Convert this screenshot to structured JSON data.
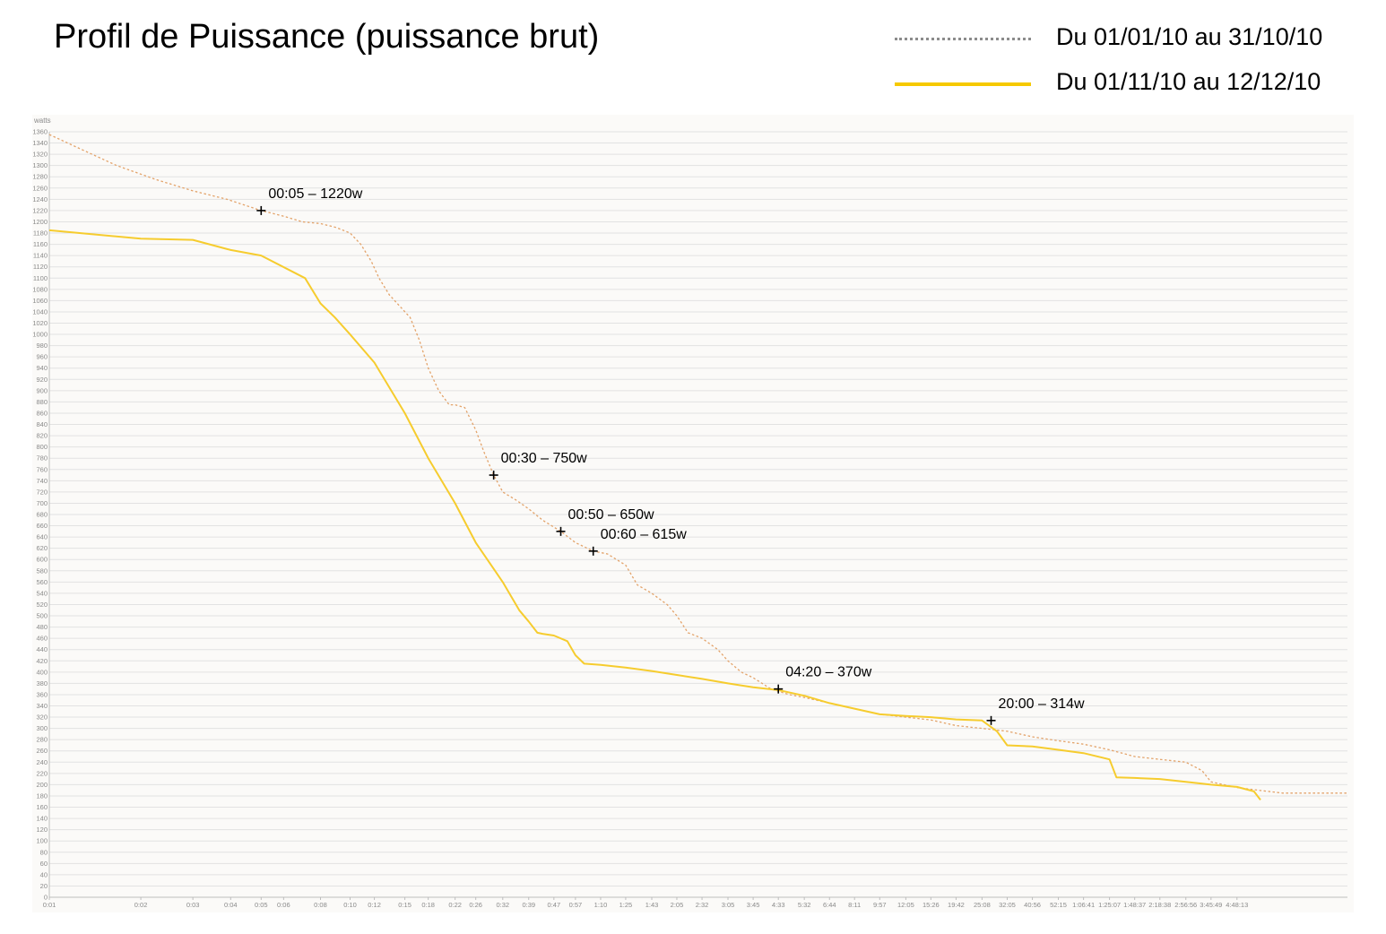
{
  "chart_data": {
    "type": "line",
    "title": "Profil de Puissance (puissance brut)",
    "ylabel": "watts",
    "ylim": [
      0,
      1360
    ],
    "yticks": [
      0,
      20,
      40,
      60,
      80,
      100,
      120,
      140,
      160,
      180,
      200,
      220,
      240,
      260,
      280,
      300,
      320,
      340,
      360,
      380,
      400,
      420,
      440,
      460,
      480,
      500,
      520,
      540,
      560,
      580,
      600,
      620,
      640,
      660,
      680,
      700,
      720,
      740,
      760,
      780,
      800,
      820,
      840,
      860,
      880,
      900,
      920,
      940,
      960,
      980,
      1000,
      1020,
      1040,
      1060,
      1080,
      1100,
      1120,
      1140,
      1160,
      1180,
      1200,
      1220,
      1240,
      1260,
      1280,
      1300,
      1320,
      1340,
      1360
    ],
    "xticks": [
      {
        "label": "0:01",
        "pos": 0.0
      },
      {
        "label": "0:02",
        "pos": 0.0705
      },
      {
        "label": "0:03",
        "pos": 0.1106
      },
      {
        "label": "0:04",
        "pos": 0.1397
      },
      {
        "label": "0:05",
        "pos": 0.1632
      },
      {
        "label": "0:06",
        "pos": 0.1805
      },
      {
        "label": "0:08",
        "pos": 0.2089
      },
      {
        "label": "0:10",
        "pos": 0.2317
      },
      {
        "label": "0:12",
        "pos": 0.2504
      },
      {
        "label": "0:15",
        "pos": 0.2739
      },
      {
        "label": "0:18",
        "pos": 0.2919
      },
      {
        "label": "0:22",
        "pos": 0.3126
      },
      {
        "label": "0:26",
        "pos": 0.3285
      },
      {
        "label": "0:32",
        "pos": 0.3493
      },
      {
        "label": "0:39",
        "pos": 0.3693
      },
      {
        "label": "0:47",
        "pos": 0.3887
      },
      {
        "label": "0:57",
        "pos": 0.4053
      },
      {
        "label": "1:10",
        "pos": 0.4247
      },
      {
        "label": "1:25",
        "pos": 0.444
      },
      {
        "label": "1:43",
        "pos": 0.4641
      },
      {
        "label": "2:05",
        "pos": 0.4834
      },
      {
        "label": "2:32",
        "pos": 0.5028
      },
      {
        "label": "3:05",
        "pos": 0.5228
      },
      {
        "label": "3:45",
        "pos": 0.5422
      },
      {
        "label": "4:33",
        "pos": 0.5616
      },
      {
        "label": "5:32",
        "pos": 0.5816
      },
      {
        "label": "6:44",
        "pos": 0.601
      },
      {
        "label": "8:11",
        "pos": 0.6203
      },
      {
        "label": "9:57",
        "pos": 0.6397
      },
      {
        "label": "12:05",
        "pos": 0.6598
      },
      {
        "label": "15:26",
        "pos": 0.6791
      },
      {
        "label": "19:42",
        "pos": 0.6985
      },
      {
        "label": "25:08",
        "pos": 0.7185
      },
      {
        "label": "32:05",
        "pos": 0.7379
      },
      {
        "label": "40:56",
        "pos": 0.7573
      },
      {
        "label": "52:15",
        "pos": 0.7773
      },
      {
        "label": "1:06:41",
        "pos": 0.7967
      },
      {
        "label": "1:25:07",
        "pos": 0.8167
      },
      {
        "label": "1:48:37",
        "pos": 0.8361
      },
      {
        "label": "2:18:38",
        "pos": 0.8555
      },
      {
        "label": "2:56:56",
        "pos": 0.8755
      },
      {
        "label": "3:45:49",
        "pos": 0.8949
      },
      {
        "label": "4:48:13",
        "pos": 0.9149
      }
    ],
    "grid": true,
    "legend_position": "top-right",
    "series": [
      {
        "name": "Du 01/01/10 au 31/10/10",
        "style": "dotted",
        "color": "#e3a36a",
        "legend_color": "#8c8c8c",
        "points": [
          [
            0,
            1355
          ],
          [
            0.0235,
            1330
          ],
          [
            0.0519,
            1300
          ],
          [
            0.0823,
            1275
          ],
          [
            0.1106,
            1255
          ],
          [
            0.137,
            1240
          ],
          [
            0.1632,
            1220
          ],
          [
            0.1805,
            1210
          ],
          [
            0.195,
            1200
          ],
          [
            0.2089,
            1197
          ],
          [
            0.221,
            1190
          ],
          [
            0.2317,
            1180
          ],
          [
            0.24,
            1160
          ],
          [
            0.248,
            1130
          ],
          [
            0.254,
            1100
          ],
          [
            0.262,
            1070
          ],
          [
            0.27,
            1050
          ],
          [
            0.278,
            1030
          ],
          [
            0.285,
            990
          ],
          [
            0.2919,
            940
          ],
          [
            0.3,
            900
          ],
          [
            0.308,
            875
          ],
          [
            0.3126,
            875
          ],
          [
            0.32,
            870
          ],
          [
            0.3285,
            830
          ],
          [
            0.335,
            790
          ],
          [
            0.3423,
            750
          ],
          [
            0.3493,
            720
          ],
          [
            0.36,
            705
          ],
          [
            0.3693,
            690
          ],
          [
            0.38,
            670
          ],
          [
            0.394,
            650
          ],
          [
            0.4053,
            630
          ],
          [
            0.419,
            615
          ],
          [
            0.43,
            610
          ],
          [
            0.444,
            590
          ],
          [
            0.453,
            555
          ],
          [
            0.4641,
            540
          ],
          [
            0.476,
            520
          ],
          [
            0.4834,
            500
          ],
          [
            0.492,
            470
          ],
          [
            0.5028,
            460
          ],
          [
            0.515,
            440
          ],
          [
            0.5228,
            420
          ],
          [
            0.533,
            400
          ],
          [
            0.5422,
            390
          ],
          [
            0.556,
            370
          ],
          [
            0.57,
            360
          ],
          [
            0.5816,
            355
          ],
          [
            0.601,
            345
          ],
          [
            0.6203,
            335
          ],
          [
            0.6397,
            325
          ],
          [
            0.6598,
            320
          ],
          [
            0.6791,
            315
          ],
          [
            0.6985,
            305
          ],
          [
            0.7185,
            300
          ],
          [
            0.7379,
            295
          ],
          [
            0.7573,
            285
          ],
          [
            0.7773,
            278
          ],
          [
            0.7967,
            272
          ],
          [
            0.8167,
            262
          ],
          [
            0.8361,
            250
          ],
          [
            0.8555,
            245
          ],
          [
            0.8755,
            240
          ],
          [
            0.888,
            225
          ],
          [
            0.8949,
            205
          ],
          [
            0.9149,
            195
          ],
          [
            0.932,
            190
          ],
          [
            0.95,
            185
          ],
          [
            1.0,
            185
          ]
        ]
      },
      {
        "name": "Du 01/11/10 au 12/12/10",
        "style": "solid",
        "color": "#f6cc2e",
        "legend_color": "#f6c900",
        "points": [
          [
            0,
            1185
          ],
          [
            0.0705,
            1170
          ],
          [
            0.1106,
            1168
          ],
          [
            0.1397,
            1150
          ],
          [
            0.1632,
            1140
          ],
          [
            0.197,
            1100
          ],
          [
            0.2089,
            1055
          ],
          [
            0.22,
            1030
          ],
          [
            0.2317,
            1000
          ],
          [
            0.2504,
            950
          ],
          [
            0.2739,
            860
          ],
          [
            0.2919,
            780
          ],
          [
            0.3126,
            700
          ],
          [
            0.3285,
            630
          ],
          [
            0.3493,
            560
          ],
          [
            0.362,
            510
          ],
          [
            0.3693,
            490
          ],
          [
            0.376,
            470
          ],
          [
            0.38,
            468
          ],
          [
            0.3887,
            465
          ],
          [
            0.399,
            455
          ],
          [
            0.4053,
            430
          ],
          [
            0.412,
            415
          ],
          [
            0.4247,
            413
          ],
          [
            0.444,
            408
          ],
          [
            0.4641,
            402
          ],
          [
            0.4834,
            395
          ],
          [
            0.5028,
            388
          ],
          [
            0.5228,
            380
          ],
          [
            0.5422,
            373
          ],
          [
            0.5616,
            368
          ],
          [
            0.5816,
            358
          ],
          [
            0.601,
            345
          ],
          [
            0.6203,
            335
          ],
          [
            0.6397,
            325
          ],
          [
            0.6598,
            322
          ],
          [
            0.6791,
            320
          ],
          [
            0.6985,
            316
          ],
          [
            0.7185,
            314
          ],
          [
            0.73,
            295
          ],
          [
            0.7379,
            270
          ],
          [
            0.7573,
            268
          ],
          [
            0.7773,
            262
          ],
          [
            0.7967,
            256
          ],
          [
            0.8167,
            245
          ],
          [
            0.822,
            213
          ],
          [
            0.8361,
            212
          ],
          [
            0.8555,
            210
          ],
          [
            0.8755,
            205
          ],
          [
            0.8949,
            200
          ],
          [
            0.9149,
            196
          ],
          [
            0.928,
            188
          ],
          [
            0.933,
            173
          ]
        ]
      }
    ],
    "annotations": [
      {
        "label": "00:05 – 1220w",
        "x": 0.1632,
        "y": 1220
      },
      {
        "label": "00:30 – 750w",
        "x": 0.3423,
        "y": 750
      },
      {
        "label": "00:50 – 650w",
        "x": 0.394,
        "y": 650
      },
      {
        "label": "00:60 – 615w",
        "x": 0.419,
        "y": 615
      },
      {
        "label": "04:20 – 370w",
        "x": 0.5616,
        "y": 370
      },
      {
        "label": "20:00 – 314w",
        "x": 0.7255,
        "y": 314
      }
    ]
  }
}
